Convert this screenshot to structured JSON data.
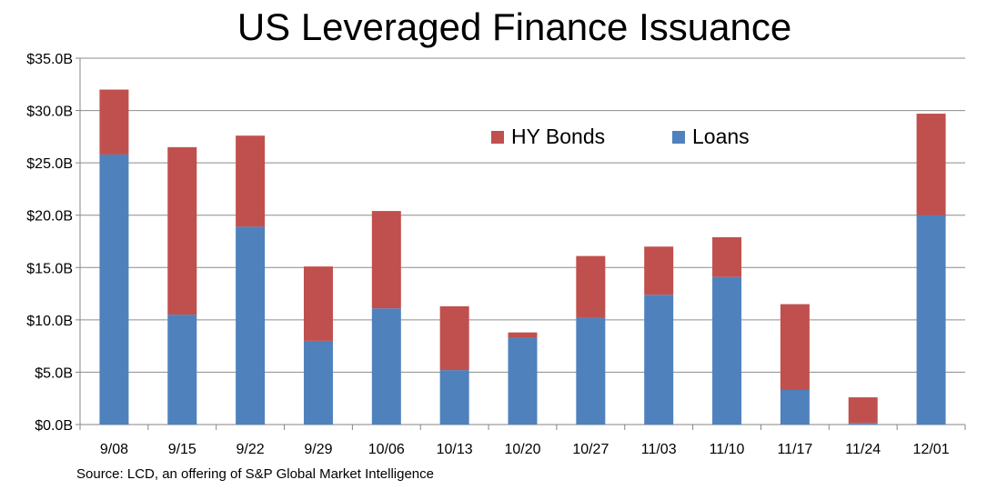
{
  "chart_data": {
    "type": "bar",
    "stacked": true,
    "title": "US Leveraged Finance Issuance",
    "categories": [
      "9/08",
      "9/15",
      "9/22",
      "9/29",
      "10/06",
      "10/13",
      "10/20",
      "10/27",
      "11/03",
      "11/10",
      "11/17",
      "11/24",
      "12/01"
    ],
    "series": [
      {
        "name": "Loans",
        "color": "#4F81BD",
        "values": [
          25.8,
          10.5,
          18.9,
          8.0,
          11.1,
          5.2,
          8.3,
          10.2,
          12.4,
          14.1,
          3.3,
          0.15,
          20.0
        ]
      },
      {
        "name": "HY Bonds",
        "color": "#C0504D",
        "values": [
          6.2,
          16.0,
          8.7,
          7.1,
          9.3,
          6.1,
          0.5,
          5.9,
          4.6,
          3.8,
          8.2,
          2.45,
          9.7
        ]
      }
    ],
    "ylim": [
      0,
      35
    ],
    "yticks": [
      0,
      5,
      10,
      15,
      20,
      25,
      30,
      35
    ],
    "ytick_labels": [
      "$0.0B",
      "$5.0B",
      "$10.0B",
      "$15.0B",
      "$20.0B",
      "$25.0B",
      "$30.0B",
      "$35.0B"
    ],
    "grid": true,
    "legend_position": "top-right",
    "legend_order": [
      "HY Bonds",
      "Loans"
    ],
    "xlabel": "",
    "ylabel": "",
    "source": "Source:  LCD, an offering of S&P Global Market Intelligence"
  }
}
